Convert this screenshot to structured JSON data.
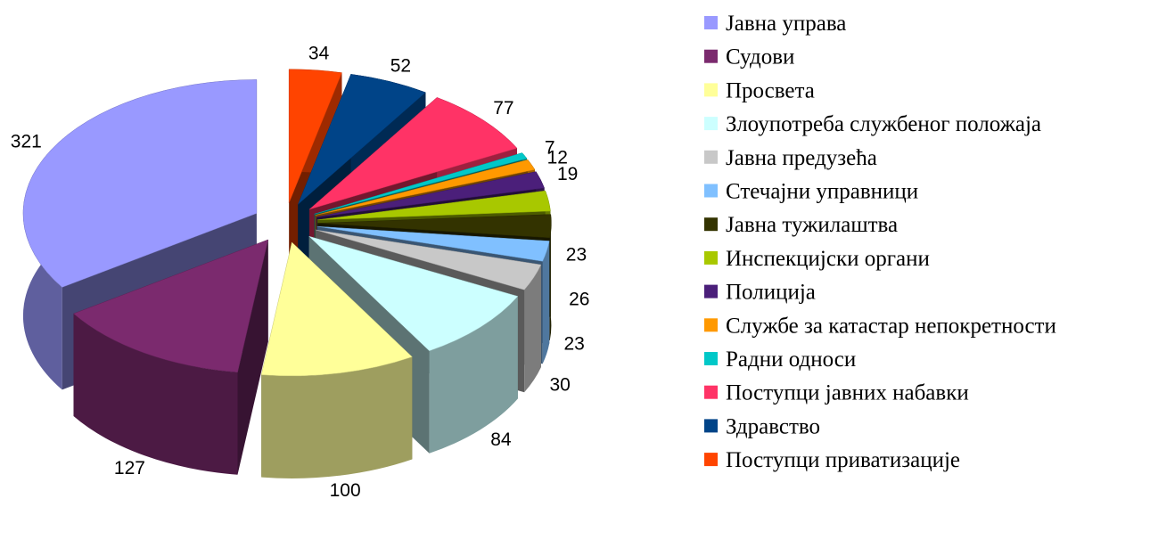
{
  "chart_data": {
    "type": "pie",
    "categories": [
      "Јавна управа",
      "Судови",
      "Просвета",
      "Злоупотреба службеног положаја",
      "Јавна предузећа",
      "Стечајни управници",
      "Јавна тужилаштва",
      "Инспекцијски органи",
      "Полиција",
      "Службе за катастар непокретности",
      "Радни односи",
      "Поступци јавних набавки",
      "Здравство",
      "Поступци приватизације"
    ],
    "values": [
      321,
      127,
      100,
      84,
      30,
      23,
      26,
      23,
      19,
      12,
      7,
      77,
      52,
      34
    ],
    "colors": [
      "#9999ff",
      "#7b2a6e",
      "#ffff99",
      "#ccffff",
      "#c8c8c8",
      "#80c0ff",
      "#333300",
      "#a8c800",
      "#4b1f7a",
      "#ff9900",
      "#00c8c8",
      "#ff3366",
      "#004488",
      "#ff4400"
    ],
    "legend": "right"
  }
}
